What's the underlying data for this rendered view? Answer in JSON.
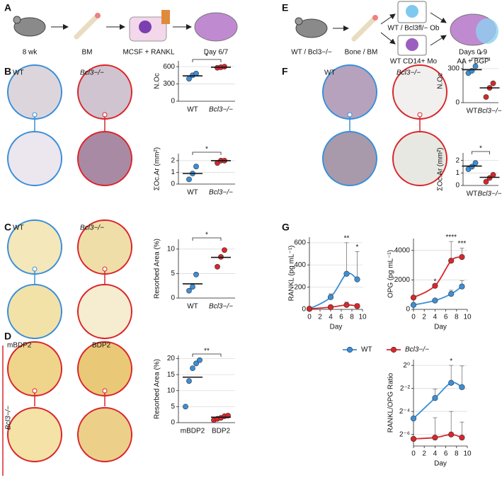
{
  "panel_letters": [
    "A",
    "B",
    "C",
    "D",
    "E",
    "F",
    "G"
  ],
  "schematic_a": [
    "8 wk",
    "BM",
    "MCSF + RANKL",
    "Day 6/7"
  ],
  "schematic_e": [
    "WT / Bcl3−/−",
    "Bone / BM",
    "WT / Bcl3fl/− Ob",
    "WT CD14+ Mo",
    "Days 0-9",
    "AA + BGP"
  ],
  "images": {
    "b": [
      "WT",
      "Bcl3−/−"
    ],
    "c": [
      "WT",
      "Bcl3−/−"
    ],
    "d": [
      "mBDP2",
      "BDP2",
      "Bcl3−/−"
    ],
    "f": [
      "WT",
      "Bcl3−/−"
    ]
  },
  "chart_data": [
    {
      "type": "dot",
      "ylabel": "N.Oc",
      "categories": [
        "WT",
        "Bcl3−/−"
      ],
      "colors": [
        "#3a8fd9",
        "#d9262b"
      ],
      "points": [
        [
          390,
          450,
          480
        ],
        [
          580,
          590,
          600
        ]
      ],
      "means": [
        440,
        590
      ],
      "ylim": [
        0,
        700
      ],
      "yticks": [
        0,
        300,
        600
      ],
      "grid": true,
      "significance": "*"
    },
    {
      "type": "dot",
      "ylabel": "ΣOc.Ar (mm²)",
      "categories": [
        "WT",
        "Bcl3−/−"
      ],
      "colors": [
        "#3a8fd9",
        "#d9262b"
      ],
      "points": [
        [
          0.4,
          0.9,
          1.5
        ],
        [
          1.8,
          2.0,
          2.0
        ]
      ],
      "means": [
        0.9,
        2.0
      ],
      "ylim": [
        0,
        2.6
      ],
      "yticks": [
        0,
        1,
        2
      ],
      "grid": true,
      "significance": "*"
    },
    {
      "type": "dot",
      "ylabel": "Resorbed Area (%)",
      "categories": [
        "WT",
        "Bcl3−/−"
      ],
      "colors": [
        "#3a8fd9",
        "#d9262b"
      ],
      "points": [
        [
          1.5,
          2.3,
          4.8
        ],
        [
          6.4,
          8.4,
          9.8
        ]
      ],
      "means": [
        2.9,
        8.3
      ],
      "ylim": [
        0,
        12
      ],
      "yticks": [
        0,
        5,
        10
      ],
      "grid": true,
      "significance": "*"
    },
    {
      "type": "dot",
      "ylabel": "Resorbed Area (%)",
      "categories": [
        "mBDP2",
        "BDP2"
      ],
      "colors": [
        "#3a8fd9",
        "#d9262b"
      ],
      "points": [
        [
          5,
          13,
          17,
          18.5,
          19.5
        ],
        [
          0.8,
          1.2,
          1.5,
          2.0,
          2.2
        ]
      ],
      "means": [
        14.2,
        1.7
      ],
      "ylim": [
        0,
        21
      ],
      "yticks": [
        0,
        5,
        10,
        15,
        20
      ],
      "grid": true,
      "significance": "**"
    },
    {
      "type": "dot",
      "ylabel": "N.Oc",
      "categories": [
        "WT",
        "Bcl3−/−"
      ],
      "colors": [
        "#3a8fd9",
        "#d9262b"
      ],
      "points": [
        [
          260,
          280,
          320
        ],
        [
          50,
          130,
          170
        ]
      ],
      "means": [
        290,
        130
      ],
      "ylim": [
        0,
        380
      ],
      "yticks": [
        0,
        300
      ],
      "grid": true,
      "significance": "*"
    },
    {
      "type": "dot",
      "ylabel": "ΣOc.Ar (mm²)",
      "categories": [
        "WT",
        "Bcl3−/−"
      ],
      "colors": [
        "#3a8fd9",
        "#d9262b"
      ],
      "points": [
        [
          1.3,
          1.5,
          1.8
        ],
        [
          0.3,
          0.6,
          0.85
        ]
      ],
      "means": [
        1.55,
        0.65
      ],
      "ylim": [
        0,
        2.6
      ],
      "yticks": [
        0,
        1,
        2
      ],
      "grid": true,
      "significance": "*"
    },
    {
      "type": "line",
      "ylabel": "RANKL (pg mL⁻¹)",
      "xlabel": "Day",
      "x": [
        0,
        4,
        7,
        9
      ],
      "series": [
        {
          "name": "WT",
          "color": "#3a8fd9",
          "values": [
            5,
            110,
            320,
            270
          ],
          "errors": [
            0,
            30,
            280,
            250
          ]
        },
        {
          "name": "Bcl3−/−",
          "color": "#d9262b",
          "values": [
            5,
            20,
            40,
            30
          ],
          "errors": [
            0,
            10,
            25,
            20
          ]
        }
      ],
      "annotations": [
        {
          "x": 7,
          "text": "**"
        },
        {
          "x": 9,
          "text": "*"
        }
      ],
      "xlim": [
        0,
        10
      ],
      "xticks": [
        0,
        2,
        4,
        6,
        8,
        10
      ],
      "ylim": [
        0,
        650
      ],
      "yticks": [
        0,
        200,
        400,
        600
      ],
      "grid": true
    },
    {
      "type": "line",
      "ylabel": "OPG (pg mL⁻¹)",
      "xlabel": "Day",
      "x": [
        0,
        4,
        7,
        9
      ],
      "series": [
        {
          "color": "#3a8fd9",
          "values": [
            300,
            600,
            1050,
            1550
          ],
          "errors": [
            0,
            100,
            250,
            400
          ]
        },
        {
          "color": "#d9262b",
          "values": [
            800,
            1600,
            3300,
            3550
          ],
          "errors": [
            0,
            0,
            1300,
            600
          ]
        }
      ],
      "annotations": [
        {
          "x": 4,
          "text": "*"
        },
        {
          "x": 7,
          "text": "****"
        },
        {
          "x": 9,
          "text": "***"
        }
      ],
      "xlim": [
        0,
        10
      ],
      "xticks": [
        0,
        2,
        4,
        6,
        8,
        10
      ],
      "ylim": [
        0,
        4800
      ],
      "yticks": [
        0,
        2000,
        4000
      ],
      "grid": true
    },
    {
      "type": "line",
      "ylabel": "RANKL/OPG Ratio",
      "xlabel": "Day",
      "x": [
        0,
        4,
        7,
        9
      ],
      "log_base": 2,
      "series": [
        {
          "color": "#3a8fd9",
          "values": [
            0.041,
            0.14,
            0.35,
            0.27
          ],
          "errors": [
            0,
            0.1,
            0.65,
            0.7
          ]
        },
        {
          "color": "#d9262b",
          "values": [
            0.012,
            0.013,
            0.0156,
            0.013
          ],
          "errors": [
            0,
            0.03,
            0.047,
            0.02
          ]
        }
      ],
      "annotations": [
        {
          "x": 7,
          "text": "*"
        }
      ],
      "xlim": [
        0,
        10
      ],
      "xticks": [
        0,
        2,
        4,
        6,
        8,
        10
      ],
      "ylim": [
        0.0078125,
        1.4142
      ],
      "yticks": [
        {
          "value": 1,
          "label": "2⁰"
        },
        {
          "value": 0.25,
          "label": "2⁻²"
        },
        {
          "value": 0.0625,
          "label": "2⁻⁴"
        },
        {
          "value": 0.015625,
          "label": "2⁻⁶"
        }
      ],
      "grid": true
    }
  ]
}
